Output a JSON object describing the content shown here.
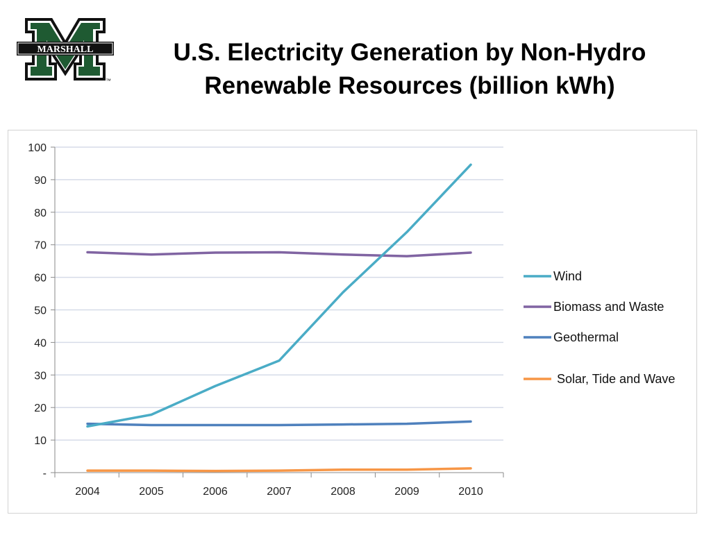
{
  "logo": {
    "text": "MARSHALL",
    "tm": "™",
    "color": "#1f5a32"
  },
  "title": {
    "line1": "U.S. Electricity Generation by Non-Hydro",
    "line2": "Renewable Resources (billion kWh)"
  },
  "chart_data": {
    "type": "line",
    "title": "U.S. Electricity Generation by Non-Hydro Renewable Resources (billion kWh)",
    "xlabel": "",
    "ylabel": "",
    "categories": [
      "2004",
      "2005",
      "2006",
      "2007",
      "2008",
      "2009",
      "2010"
    ],
    "ylim": [
      0,
      100
    ],
    "yticks": [
      0,
      10,
      20,
      30,
      40,
      50,
      60,
      70,
      80,
      90,
      100
    ],
    "ytick_labels": [
      "-",
      "10",
      "20",
      "30",
      "40",
      "50",
      "60",
      "70",
      "80",
      "90",
      "100"
    ],
    "grid": true,
    "legend_position": "right",
    "series": [
      {
        "name": "Wind",
        "color": "#4aacc6",
        "values": [
          14.2,
          17.8,
          26.6,
          34.4,
          55.4,
          73.9,
          94.6
        ]
      },
      {
        "name": "Biomass and Waste",
        "color": "#8064a2",
        "values": [
          67.7,
          67.0,
          67.6,
          67.7,
          67.0,
          66.5,
          67.6
        ]
      },
      {
        "name": "Geothermal",
        "color": "#4f81bd",
        "values": [
          15.0,
          14.6,
          14.6,
          14.6,
          14.8,
          15.0,
          15.7
        ]
      },
      {
        "name": "Solar, Tide and Wave",
        "color": "#f79646",
        "values": [
          0.6,
          0.6,
          0.5,
          0.6,
          0.9,
          0.9,
          1.3
        ]
      }
    ]
  }
}
